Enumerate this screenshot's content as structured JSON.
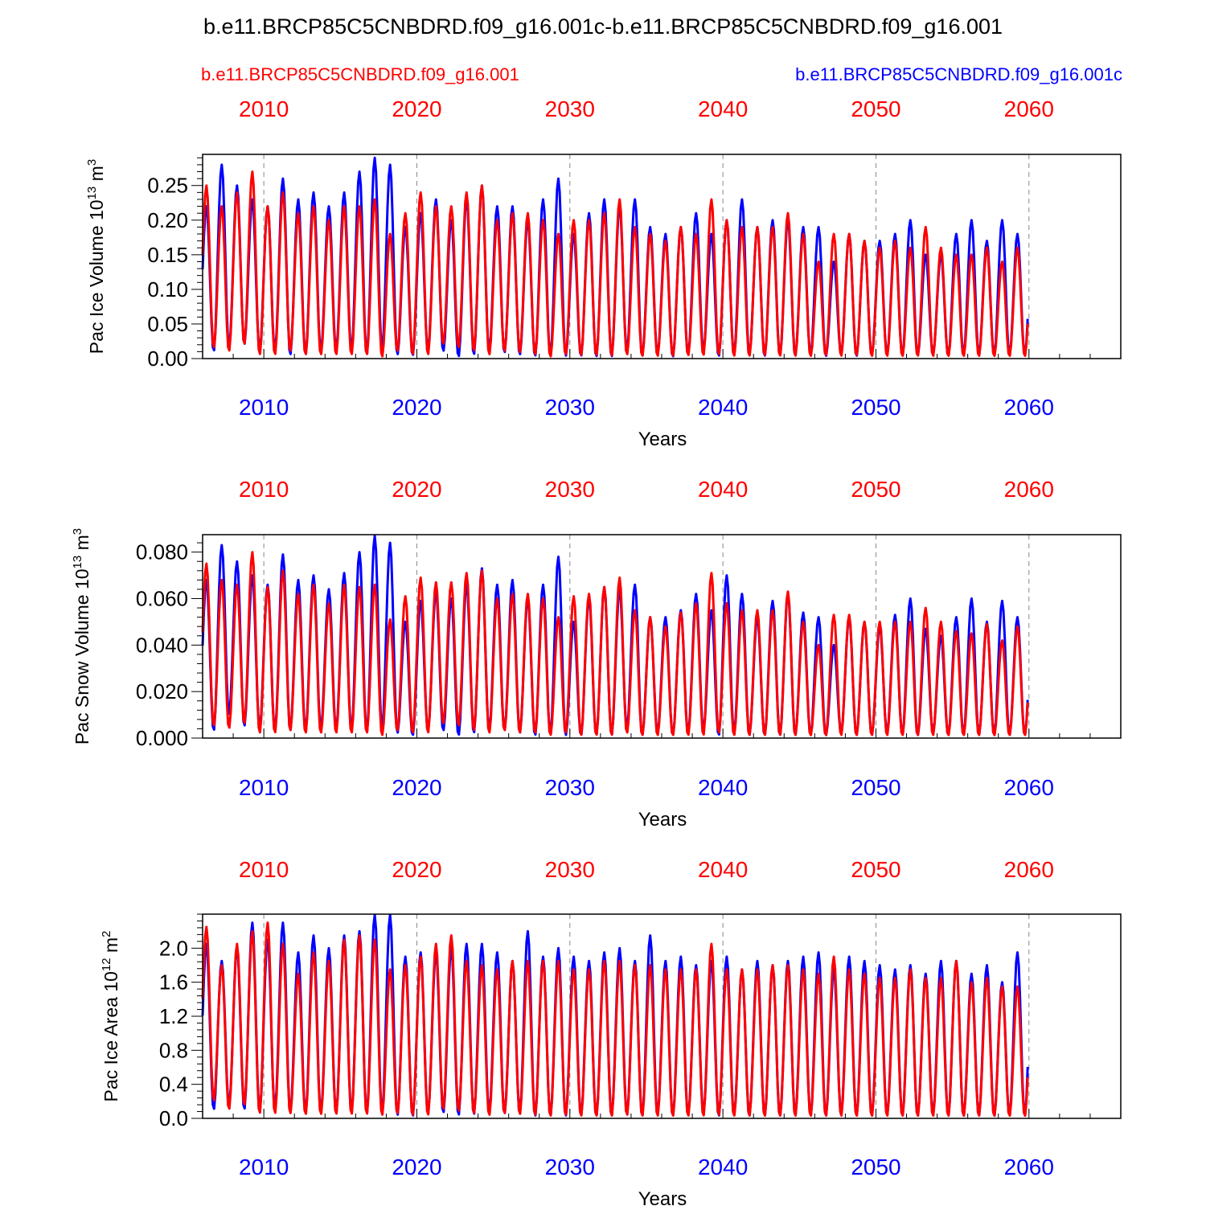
{
  "title": "b.e11.BRCP85C5CNBDRD.f09_g16.001c-b.e11.BRCP85C5CNBDRD.f09_g16.001",
  "legend": {
    "red_case": "b.e11.BRCP85C5CNBDRD.f09_g16.001",
    "blue_case": "b.e11.BRCP85C5CNBDRD.f09_g16.001c"
  },
  "colors": {
    "red_case": "#ff0000",
    "blue_case": "#0000ff"
  },
  "chart_data": [
    {
      "type": "line",
      "ylabel": "Pac Ice Volume 10",
      "ylabel_exp": "13",
      "ylabel_unit": "m",
      "ylabel_unit_exp": "3",
      "xlabel": "Years",
      "xlim": [
        2006,
        2066
      ],
      "ylim": [
        0,
        0.295
      ],
      "yticks": [
        0,
        0.05,
        0.1,
        0.15,
        0.2,
        0.25
      ],
      "ytick_labels": [
        "0.00",
        "0.05",
        "0.10",
        "0.15",
        "0.20",
        "0.25"
      ],
      "top_xticks": [
        2010,
        2020,
        2030,
        2040,
        2050,
        2060
      ],
      "bottom_xticks": [
        2010,
        2020,
        2030,
        2040,
        2050,
        2060
      ],
      "series": [
        {
          "name": "b.e11.BRCP85C5CNBDRD.f09_g16.001c",
          "color": "#0000ff",
          "peaks": [
            0.22,
            0.28,
            0.25,
            0.23,
            0.22,
            0.26,
            0.23,
            0.24,
            0.22,
            0.24,
            0.27,
            0.29,
            0.28,
            0.19,
            0.21,
            0.23,
            0.2,
            0.23,
            0.25,
            0.22,
            0.22,
            0.2,
            0.23,
            0.26,
            0.18,
            0.21,
            0.23,
            0.22,
            0.23,
            0.19,
            0.18,
            0.19,
            0.21,
            0.18,
            0.2,
            0.23,
            0.19,
            0.2,
            0.2,
            0.19,
            0.19,
            0.14,
            0.18,
            0.17,
            0.17,
            0.18,
            0.2,
            0.15,
            0.15,
            0.18,
            0.2,
            0.17,
            0.2,
            0.18
          ],
          "troughs": [
            0.01,
            0.015,
            0.02,
            0.01,
            0.01,
            0.005,
            0.005,
            0.01,
            0.01,
            0.01,
            0.005,
            0.01,
            0.005,
            0.004,
            0.01,
            0.01,
            0.002,
            0.005,
            0.01,
            0.008,
            0.005,
            0.003,
            0.002,
            0.003,
            0.003,
            0.002,
            0.002,
            0.01,
            0.003,
            0.005,
            0.002,
            0.005,
            0.01,
            0.003,
            0.005,
            0.004,
            0.003,
            0.004,
            0.003,
            0.004,
            0.003,
            0.006,
            0.003,
            0.004,
            0.005,
            0.003,
            0.004,
            0.005,
            0.003,
            0.004,
            0.004,
            0.003,
            0.004,
            0.004
          ]
        },
        {
          "name": "b.e11.BRCP85C5CNBDRD.f09_g16.001",
          "color": "#ff0000",
          "peaks": [
            0.25,
            0.22,
            0.24,
            0.27,
            0.22,
            0.24,
            0.21,
            0.22,
            0.2,
            0.22,
            0.22,
            0.23,
            0.18,
            0.21,
            0.24,
            0.22,
            0.22,
            0.24,
            0.25,
            0.2,
            0.21,
            0.21,
            0.2,
            0.18,
            0.2,
            0.2,
            0.21,
            0.23,
            0.19,
            0.18,
            0.17,
            0.19,
            0.18,
            0.23,
            0.2,
            0.19,
            0.19,
            0.19,
            0.21,
            0.18,
            0.14,
            0.18,
            0.18,
            0.17,
            0.16,
            0.17,
            0.16,
            0.19,
            0.16,
            0.15,
            0.15,
            0.16,
            0.14,
            0.16
          ],
          "troughs": [
            0.015,
            0.01,
            0.02,
            0.005,
            0.005,
            0.01,
            0.005,
            0.005,
            0.005,
            0.005,
            0.005,
            0.002,
            0.01,
            0.005,
            0.005,
            0.02,
            0.015,
            0.01,
            0.005,
            0.01,
            0.008,
            0.005,
            0.002,
            0.005,
            0.004,
            0.004,
            0.003,
            0.005,
            0.003,
            0.003,
            0.003,
            0.004,
            0.004,
            0.005,
            0.003,
            0.003,
            0.004,
            0.003,
            0.003,
            0.003,
            0.004,
            0.003,
            0.004,
            0.003,
            0.003,
            0.003,
            0.003,
            0.003,
            0.003,
            0.003,
            0.003,
            0.003,
            0.003,
            0.003
          ]
        }
      ]
    },
    {
      "type": "line",
      "ylabel": "Pac Snow Volume 10",
      "ylabel_exp": "13",
      "ylabel_unit": "m",
      "ylabel_unit_exp": "3",
      "xlabel": "Years",
      "xlim": [
        2006,
        2066
      ],
      "ylim": [
        0,
        0.0875
      ],
      "yticks": [
        0,
        0.02,
        0.04,
        0.06,
        0.08
      ],
      "ytick_labels": [
        "0.000",
        "0.020",
        "0.040",
        "0.060",
        "0.080"
      ],
      "top_xticks": [
        2010,
        2020,
        2030,
        2040,
        2050,
        2060
      ],
      "bottom_xticks": [
        2010,
        2020,
        2030,
        2040,
        2050,
        2060
      ],
      "series": [
        {
          "name": "b.e11.BRCP85C5CNBDRD.f09_g16.001c",
          "color": "#0000ff",
          "peaks": [
            0.068,
            0.083,
            0.076,
            0.07,
            0.066,
            0.079,
            0.068,
            0.07,
            0.064,
            0.071,
            0.08,
            0.087,
            0.084,
            0.05,
            0.059,
            0.063,
            0.06,
            0.066,
            0.073,
            0.066,
            0.068,
            0.06,
            0.066,
            0.078,
            0.05,
            0.06,
            0.065,
            0.064,
            0.066,
            0.052,
            0.052,
            0.055,
            0.062,
            0.055,
            0.07,
            0.062,
            0.052,
            0.059,
            0.062,
            0.054,
            0.052,
            0.04,
            0.052,
            0.05,
            0.048,
            0.053,
            0.06,
            0.047,
            0.044,
            0.052,
            0.06,
            0.05,
            0.059,
            0.052
          ],
          "troughs": [
            0.003,
            0.01,
            0.005,
            0.004,
            0.003,
            0.003,
            0.003,
            0.004,
            0.003,
            0.003,
            0.002,
            0.003,
            0.002,
            0.001,
            0.003,
            0.003,
            0.001,
            0.002,
            0.003,
            0.003,
            0.002,
            0.001,
            0.001,
            0.001,
            0.001,
            0.001,
            0.001,
            0.004,
            0.001,
            0.002,
            0.001,
            0.002,
            0.003,
            0.001,
            0.002,
            0.001,
            0.001,
            0.001,
            0.001,
            0.001,
            0.001,
            0.002,
            0.001,
            0.001,
            0.002,
            0.001,
            0.001,
            0.002,
            0.001,
            0.001,
            0.001,
            0.001,
            0.001,
            0.001
          ]
        },
        {
          "name": "b.e11.BRCP85C5CNBDRD.f09_g16.001",
          "color": "#ff0000",
          "peaks": [
            0.075,
            0.068,
            0.066,
            0.08,
            0.065,
            0.072,
            0.062,
            0.066,
            0.058,
            0.066,
            0.065,
            0.066,
            0.051,
            0.061,
            0.069,
            0.067,
            0.067,
            0.071,
            0.072,
            0.06,
            0.062,
            0.062,
            0.06,
            0.052,
            0.061,
            0.062,
            0.065,
            0.069,
            0.055,
            0.052,
            0.048,
            0.054,
            0.058,
            0.071,
            0.058,
            0.055,
            0.055,
            0.055,
            0.063,
            0.05,
            0.04,
            0.053,
            0.053,
            0.05,
            0.05,
            0.05,
            0.05,
            0.056,
            0.05,
            0.046,
            0.045,
            0.049,
            0.042,
            0.048
          ],
          "troughs": [
            0.005,
            0.004,
            0.006,
            0.002,
            0.002,
            0.003,
            0.002,
            0.002,
            0.002,
            0.002,
            0.002,
            0.001,
            0.003,
            0.002,
            0.002,
            0.006,
            0.005,
            0.003,
            0.002,
            0.003,
            0.002,
            0.002,
            0.001,
            0.002,
            0.001,
            0.001,
            0.001,
            0.002,
            0.001,
            0.001,
            0.001,
            0.001,
            0.001,
            0.002,
            0.001,
            0.001,
            0.001,
            0.001,
            0.001,
            0.001,
            0.001,
            0.001,
            0.001,
            0.001,
            0.001,
            0.001,
            0.001,
            0.001,
            0.001,
            0.001,
            0.001,
            0.001,
            0.001,
            0.001
          ]
        }
      ]
    },
    {
      "type": "line",
      "ylabel": "Pac Ice Area 10",
      "ylabel_exp": "12",
      "ylabel_unit": "m",
      "ylabel_unit_exp": "2",
      "xlabel": "Years",
      "xlim": [
        2006,
        2066
      ],
      "ylim": [
        0,
        2.4
      ],
      "yticks": [
        0,
        0.4,
        0.8,
        1.2,
        1.6,
        2.0
      ],
      "ytick_labels": [
        "0.0",
        "0.4",
        "0.8",
        "1.2",
        "1.6",
        "2.0"
      ],
      "top_xticks": [
        2010,
        2020,
        2030,
        2040,
        2050,
        2060
      ],
      "bottom_xticks": [
        2010,
        2020,
        2030,
        2040,
        2050,
        2060
      ],
      "series": [
        {
          "name": "b.e11.BRCP85C5CNBDRD.f09_g16.001c",
          "color": "#0000ff",
          "peaks": [
            2.05,
            1.85,
            2.0,
            2.3,
            2.1,
            2.3,
            1.95,
            2.15,
            2.0,
            2.15,
            2.2,
            2.4,
            2.4,
            1.9,
            1.95,
            1.95,
            2.0,
            2.05,
            2.05,
            1.95,
            1.85,
            2.2,
            1.9,
            2.0,
            1.9,
            1.85,
            1.95,
            2.0,
            1.85,
            2.15,
            1.85,
            1.9,
            1.8,
            1.85,
            1.9,
            1.75,
            1.85,
            1.8,
            1.85,
            1.9,
            1.95,
            1.75,
            1.9,
            1.85,
            1.8,
            1.75,
            1.8,
            1.7,
            1.85,
            1.85,
            1.7,
            1.8,
            1.6,
            1.95
          ],
          "troughs": [
            0.1,
            0.15,
            0.1,
            0.08,
            0.1,
            0.06,
            0.05,
            0.06,
            0.05,
            0.06,
            0.05,
            0.04,
            0.03,
            0.02,
            0.05,
            0.06,
            0.03,
            0.04,
            0.06,
            0.05,
            0.05,
            0.02,
            0.02,
            0.02,
            0.03,
            0.02,
            0.02,
            0.05,
            0.02,
            0.03,
            0.02,
            0.03,
            0.05,
            0.02,
            0.03,
            0.02,
            0.02,
            0.02,
            0.02,
            0.02,
            0.02,
            0.04,
            0.02,
            0.02,
            0.03,
            0.02,
            0.02,
            0.03,
            0.02,
            0.02,
            0.02,
            0.02,
            0.02,
            0.02
          ]
        },
        {
          "name": "b.e11.BRCP85C5CNBDRD.f09_g16.001",
          "color": "#ff0000",
          "peaks": [
            2.25,
            1.8,
            2.05,
            2.2,
            2.3,
            2.05,
            1.7,
            1.95,
            1.85,
            2.1,
            2.15,
            2.1,
            1.75,
            1.8,
            1.9,
            2.05,
            2.15,
            1.85,
            1.8,
            1.75,
            1.85,
            1.85,
            1.85,
            1.85,
            1.75,
            1.75,
            1.85,
            1.85,
            1.8,
            1.8,
            1.75,
            1.75,
            1.75,
            2.05,
            1.75,
            1.75,
            1.75,
            1.8,
            1.8,
            1.75,
            1.7,
            1.9,
            1.75,
            1.7,
            1.65,
            1.65,
            1.75,
            1.65,
            1.65,
            1.85,
            1.6,
            1.65,
            1.55,
            1.55
          ],
          "troughs": [
            0.2,
            0.1,
            0.15,
            0.05,
            0.05,
            0.05,
            0.04,
            0.04,
            0.04,
            0.04,
            0.04,
            0.03,
            0.05,
            0.03,
            0.03,
            0.1,
            0.08,
            0.05,
            0.03,
            0.05,
            0.04,
            0.03,
            0.02,
            0.03,
            0.02,
            0.02,
            0.02,
            0.03,
            0.02,
            0.02,
            0.02,
            0.02,
            0.02,
            0.03,
            0.02,
            0.02,
            0.02,
            0.02,
            0.02,
            0.02,
            0.02,
            0.02,
            0.02,
            0.02,
            0.02,
            0.02,
            0.02,
            0.02,
            0.02,
            0.02,
            0.02,
            0.02,
            0.02,
            0.02
          ]
        }
      ]
    }
  ]
}
